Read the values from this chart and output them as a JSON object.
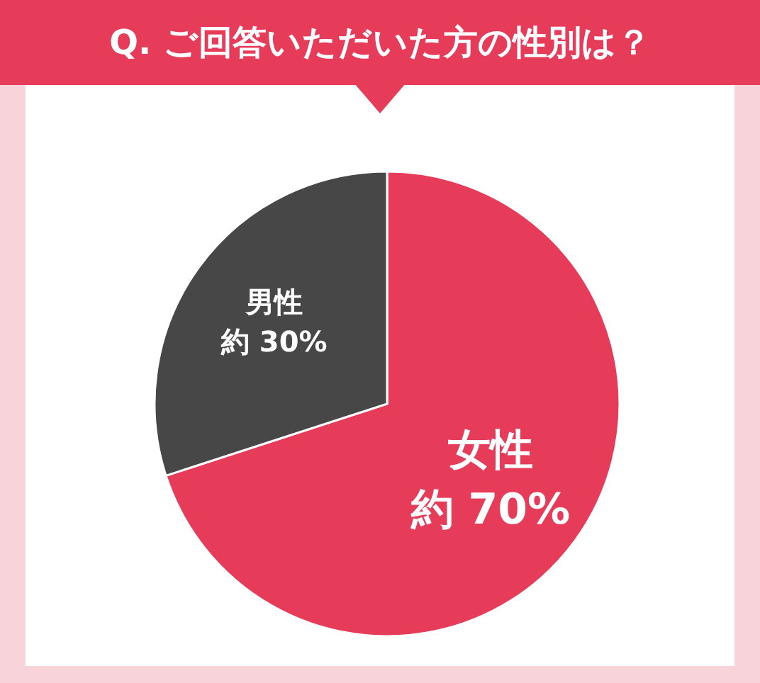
{
  "chart_data": {
    "type": "pie",
    "title": "Q. ご回答いただいた方の性別は？",
    "categories": [
      "女性",
      "男性"
    ],
    "values": [
      70,
      30
    ],
    "colors": [
      "#e63c5a",
      "#474747"
    ],
    "value_labels": [
      "約 70%",
      "約 30%"
    ]
  }
}
